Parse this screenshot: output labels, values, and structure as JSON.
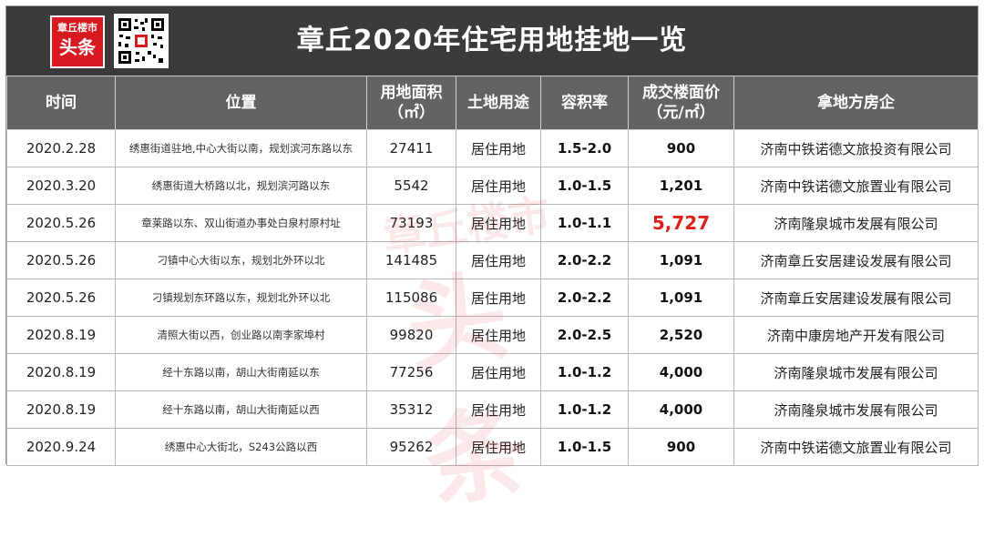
{
  "title": "章丘2020年住宅用地挂地一览",
  "logo": {
    "line1": "章丘楼市",
    "line2": "头条",
    "watermark_line1": "章丘楼市",
    "watermark_line2": "头条"
  },
  "colors": {
    "banner": "#3b3b3b",
    "header": "#636363",
    "highlight": "#e0201b",
    "logo": "#d71920"
  },
  "columns": {
    "time": "时间",
    "location": "位置",
    "area_line1": "用地面积",
    "area_line2": "（㎡）",
    "use": "土地用途",
    "far": "容积率",
    "price_line1": "成交楼面价",
    "price_line2": "（元/㎡）",
    "developer": "拿地方房企"
  },
  "rows": [
    {
      "time": "2020.2.28",
      "location": "绣惠街道驻地,中心大街以南，规划滨河东路以东",
      "area": "27411",
      "use": "居住用地",
      "far": "1.5-2.0",
      "price": "900",
      "developer": "济南中铁诺德文旅投资有限公司"
    },
    {
      "time": "2020.3.20",
      "location": "绣惠街道大桥路以北，规划滨河路以东",
      "area": "5542",
      "use": "居住用地",
      "far": "1.0-1.5",
      "price": "1,201",
      "developer": "济南中铁诺德文旅置业有限公司"
    },
    {
      "time": "2020.5.26",
      "location": "章莱路以东、双山街道办事处白泉村原村址",
      "area": "73193",
      "use": "居住用地",
      "far": "1.0-1.1",
      "price": "5,727",
      "developer": "济南隆泉城市发展有限公司"
    },
    {
      "time": "2020.5.26",
      "location": "刁镇中心大街以东，规划北外环以北",
      "area": "141485",
      "use": "居住用地",
      "far": "2.0-2.2",
      "price": "1,091",
      "developer": "济南章丘安居建设发展有限公司"
    },
    {
      "time": "2020.5.26",
      "location": "刁镇规划东环路以东，规划北外环以北",
      "area": "115086",
      "use": "居住用地",
      "far": "2.0-2.2",
      "price": "1,091",
      "developer": "济南章丘安居建设发展有限公司"
    },
    {
      "time": "2020.8.19",
      "location": "清照大街以西，创业路以南李家埠村",
      "area": "99820",
      "use": "居住用地",
      "far": "2.0-2.5",
      "price": "2,520",
      "developer": "济南中康房地产开发有限公司"
    },
    {
      "time": "2020.8.19",
      "location": "经十东路以南，胡山大街南延以东",
      "area": "77256",
      "use": "居住用地",
      "far": "1.0-1.2",
      "price": "4,000",
      "developer": "济南隆泉城市发展有限公司"
    },
    {
      "time": "2020.8.19",
      "location": "经十东路以南，胡山大街南延以西",
      "area": "35312",
      "use": "居住用地",
      "far": "1.0-1.2",
      "price": "4,000",
      "developer": "济南隆泉城市发展有限公司"
    },
    {
      "time": "2020.9.24",
      "location": "绣惠中心大街北，S243公路以西",
      "area": "95262",
      "use": "居住用地",
      "far": "1.0-1.5",
      "price": "900",
      "developer": "济南中铁诺德文旅置业有限公司"
    }
  ]
}
